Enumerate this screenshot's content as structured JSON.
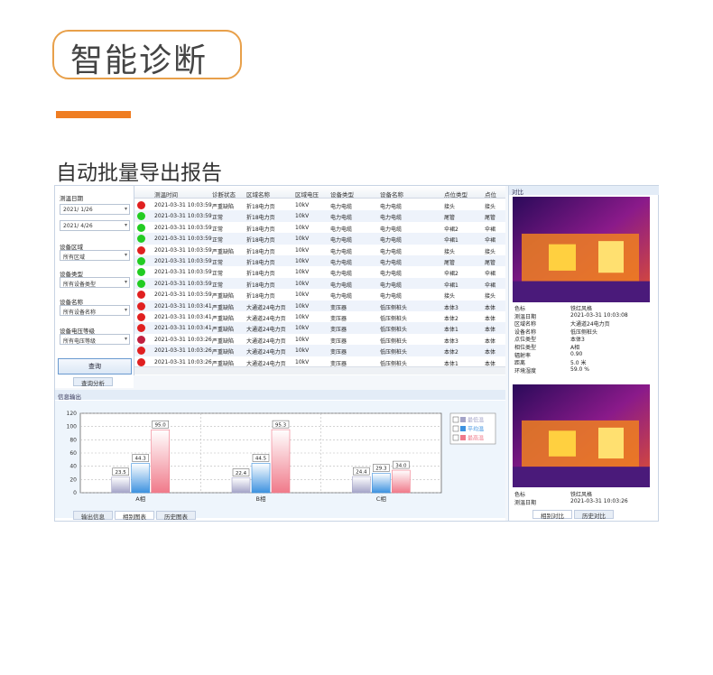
{
  "header": {
    "title": "智能诊断",
    "subtitle": "自动批量导出报告"
  },
  "filter": {
    "date_label": "测温日期",
    "date_from": "2021/ 1/26",
    "date_to": "2021/ 4/26",
    "area_label": "设备区域",
    "area": "所有区域",
    "type_label": "设备类型",
    "type": "所有设备类型",
    "name_label": "设备名称",
    "name": "所有设备名称",
    "voltage_label": "设备电压等级",
    "voltage": "所有电压等级",
    "button": "查询",
    "tab": "查询分析"
  },
  "table": {
    "columns": [
      "测温时间",
      "诊断状态",
      "区域名称",
      "区域电压",
      "设备类型",
      "设备名称",
      "点位类型",
      "点位"
    ],
    "rows": [
      {
        "color": "#e02020",
        "cells": [
          "2021-03-31 10:03:59",
          "严重缺陷",
          "折18电力页",
          "10kV",
          "电力电缆",
          "电力电缆",
          "接头",
          "接头"
        ]
      },
      {
        "color": "#22cc22",
        "cells": [
          "2021-03-31 10:03:59",
          "正常",
          "折18电力页",
          "10kV",
          "电力电缆",
          "电力电缆",
          "尾管",
          "尾管"
        ]
      },
      {
        "color": "#22cc22",
        "cells": [
          "2021-03-31 10:03:59",
          "正常",
          "折18电力页",
          "10kV",
          "电力电缆",
          "电力电缆",
          "伞裙2",
          "伞裙"
        ]
      },
      {
        "color": "#22cc22",
        "cells": [
          "2021-03-31 10:03:59",
          "正常",
          "折18电力页",
          "10kV",
          "电力电缆",
          "电力电缆",
          "伞裙1",
          "伞裙"
        ]
      },
      {
        "color": "#e02020",
        "cells": [
          "2021-03-31 10:03:59",
          "严重缺陷",
          "折18电力页",
          "10kV",
          "电力电缆",
          "电力电缆",
          "接头",
          "接头"
        ]
      },
      {
        "color": "#22cc22",
        "cells": [
          "2021-03-31 10:03:59",
          "正常",
          "折18电力页",
          "10kV",
          "电力电缆",
          "电力电缆",
          "尾管",
          "尾管"
        ]
      },
      {
        "color": "#22cc22",
        "cells": [
          "2021-03-31 10:03:59",
          "正常",
          "折18电力页",
          "10kV",
          "电力电缆",
          "电力电缆",
          "伞裙2",
          "伞裙"
        ]
      },
      {
        "color": "#22cc22",
        "cells": [
          "2021-03-31 10:03:59",
          "正常",
          "折18电力页",
          "10kV",
          "电力电缆",
          "电力电缆",
          "伞裙1",
          "伞裙"
        ]
      },
      {
        "color": "#e02020",
        "cells": [
          "2021-03-31 10:03:59",
          "严重缺陷",
          "折18电力页",
          "10kV",
          "电力电缆",
          "电力电缆",
          "接头",
          "接头"
        ]
      },
      {
        "color": "#e02020",
        "cells": [
          "2021-03-31 10:03:41",
          "严重缺陷",
          "大通道24电力页",
          "10kV",
          "变压器",
          "低压侧桩头",
          "本体3",
          "本体"
        ]
      },
      {
        "color": "#e02020",
        "cells": [
          "2021-03-31 10:03:41",
          "严重缺陷",
          "大通道24电力页",
          "10kV",
          "变压器",
          "低压侧桩头",
          "本体2",
          "本体"
        ]
      },
      {
        "color": "#e02020",
        "cells": [
          "2021-03-31 10:03:41",
          "严重缺陷",
          "大通道24电力页",
          "10kV",
          "变压器",
          "低压侧桩头",
          "本体1",
          "本体"
        ]
      },
      {
        "color": "#c02040",
        "cells": [
          "2021-03-31 10:03:26",
          "严重缺陷",
          "大通道24电力页",
          "10kV",
          "变压器",
          "低压侧桩头",
          "本体3",
          "本体"
        ]
      },
      {
        "color": "#e02020",
        "cells": [
          "2021-03-31 10:03:26",
          "严重缺陷",
          "大通道24电力页",
          "10kV",
          "变压器",
          "低压侧桩头",
          "本体2",
          "本体"
        ]
      },
      {
        "color": "#e02020",
        "cells": [
          "2021-03-31 10:03:26",
          "严重缺陷",
          "大通道24电力页",
          "10kV",
          "变压器",
          "低压侧桩头",
          "本体1",
          "本体"
        ]
      }
    ]
  },
  "chart_data": {
    "type": "bar",
    "title": "信息输出",
    "categories": [
      "A相",
      "B相",
      "C相"
    ],
    "series": [
      {
        "name": "最低温",
        "color": "#a4a4c8",
        "values": [
          23.5,
          22.4,
          24.4
        ],
        "value_labels": [
          "23.5",
          "22.4",
          "24.4"
        ]
      },
      {
        "name": "平均温",
        "color": "#3d92e0",
        "values": [
          44.3,
          44.5,
          29.3
        ],
        "value_labels": [
          "44.3",
          "44.5",
          "29.3"
        ]
      },
      {
        "name": "最高温",
        "color": "#f07a8a",
        "values": [
          95,
          95.3,
          34
        ],
        "value_labels": [
          "95.0",
          "95.3",
          "34.0"
        ]
      }
    ],
    "ylim": [
      0,
      120
    ],
    "yticks": [
      0,
      20,
      40,
      60,
      80,
      100,
      120
    ],
    "grid": true
  },
  "output_tabs": [
    "输出信息",
    "相别图表",
    "历史图表"
  ],
  "compare": {
    "title": "对比",
    "info1": [
      [
        "色标",
        "铁红风格"
      ],
      [
        "测温日期",
        "2021-03-31 10:03:08"
      ],
      [
        "区域名称",
        "大通道24电力页"
      ],
      [
        "设备名称",
        "低压侧桩头"
      ],
      [
        "点位类型",
        "本体3"
      ],
      [
        "相位类型",
        "A相"
      ],
      [
        "辐射率",
        "0.90"
      ],
      [
        "距离",
        "5.0 米"
      ],
      [
        "环境湿度",
        "59.0 %"
      ]
    ],
    "info2": [
      [
        "色标",
        "铁红风格"
      ],
      [
        "测温日期",
        "2021-03-31 10:03:26"
      ]
    ],
    "tabs": [
      "相别对比",
      "历史对比"
    ]
  }
}
